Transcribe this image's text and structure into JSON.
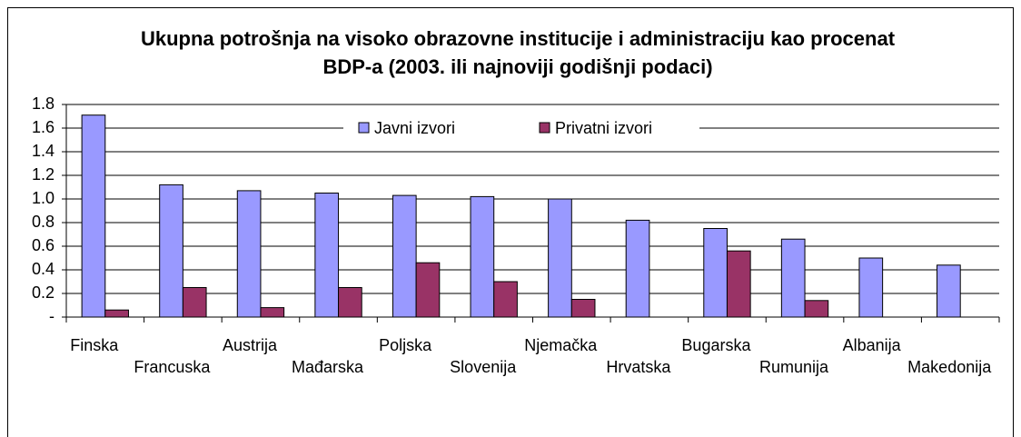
{
  "chart_data": {
    "type": "bar",
    "title": [
      "Ukupna potrošnja na visoko obrazovne institucije i administraciju kao procenat",
      "BDP-a (2003. ili najnoviji godišnji podaci)"
    ],
    "categories": [
      "Finska",
      "Francuska",
      "Austrija",
      "Mađarska",
      "Poljska",
      "Slovenija",
      "Njemačka",
      "Hrvatska",
      "Bugarska",
      "Rumunija",
      "Albanija",
      "Makedonija"
    ],
    "series": [
      {
        "name": "Javni izvori",
        "color": "#9999ff",
        "values": [
          1.71,
          1.12,
          1.07,
          1.05,
          1.03,
          1.02,
          1.0,
          0.82,
          0.75,
          0.66,
          0.5,
          0.44
        ]
      },
      {
        "name": "Privatni izvori",
        "color": "#993366",
        "values": [
          0.06,
          0.25,
          0.08,
          0.25,
          0.46,
          0.3,
          0.15,
          null,
          0.56,
          0.14,
          null,
          null
        ]
      }
    ],
    "ylim": [
      0,
      1.8
    ],
    "yticks": [
      {
        "value": 0,
        "label": "-"
      },
      0.2,
      0.4,
      0.6,
      0.8,
      {
        "value": 1,
        "label": "1.0"
      },
      1.2,
      1.4,
      1.6,
      1.8
    ],
    "grid": true,
    "legend": "top"
  }
}
